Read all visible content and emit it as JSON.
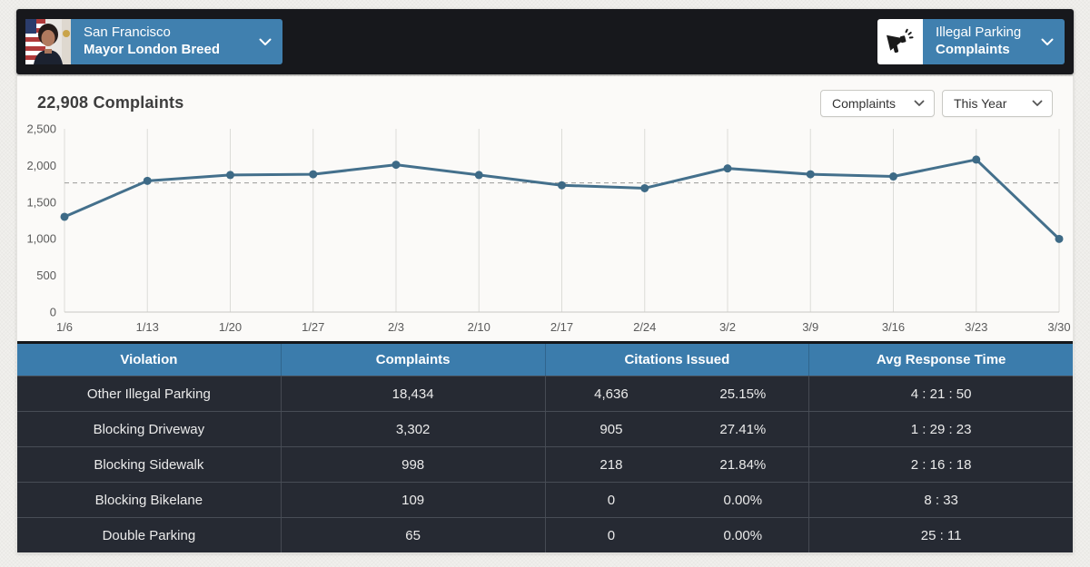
{
  "header": {
    "city_selector": {
      "line1": "San Francisco",
      "line2": "Mayor London Breed"
    },
    "category_selector": {
      "line1": "Illegal Parking",
      "line2": "Complaints"
    }
  },
  "toolbar": {
    "title": "22,908 Complaints",
    "metric_dropdown": "Complaints",
    "period_dropdown": "This Year"
  },
  "chart_data": {
    "type": "line",
    "categories": [
      "1/6",
      "1/13",
      "1/20",
      "1/27",
      "2/3",
      "2/10",
      "2/17",
      "2/24",
      "3/2",
      "3/9",
      "3/16",
      "3/23",
      "3/30"
    ],
    "values": [
      1300,
      1790,
      1870,
      1880,
      2010,
      1870,
      1730,
      1690,
      1960,
      1880,
      1850,
      2080,
      998
    ],
    "average_line": 1762,
    "ylim": [
      0,
      2500
    ],
    "yticks": [
      0,
      500,
      1000,
      1500,
      2000,
      2500
    ],
    "ytick_labels": [
      "0",
      "500",
      "1,000",
      "1,500",
      "2,000",
      "2,500"
    ],
    "grid": "vertical-only",
    "legend": "none",
    "line_color": "#44708c",
    "point_color": "#3d6a86"
  },
  "table": {
    "columns": [
      "Violation",
      "Complaints",
      "Citations Issued",
      "Avg Response Time"
    ],
    "rows": [
      {
        "violation": "Other Illegal Parking",
        "complaints": "18,434",
        "citations": "4,636",
        "citation_rate": "25.15%",
        "avg_response": "4 : 21 : 50"
      },
      {
        "violation": "Blocking Driveway",
        "complaints": "3,302",
        "citations": "905",
        "citation_rate": "27.41%",
        "avg_response": "1 : 29 : 23"
      },
      {
        "violation": "Blocking Sidewalk",
        "complaints": "998",
        "citations": "218",
        "citation_rate": "21.84%",
        "avg_response": "2 : 16 : 18"
      },
      {
        "violation": "Blocking Bikelane",
        "complaints": "109",
        "citations": "0",
        "citation_rate": "0.00%",
        "avg_response": "8 : 33"
      },
      {
        "violation": "Double Parking",
        "complaints": "65",
        "citations": "0",
        "citation_rate": "0.00%",
        "avg_response": "25 : 11"
      }
    ]
  },
  "colors": {
    "topbar": "#17181c",
    "accent_blue": "#4080af",
    "table_header_blue": "#3b7cac",
    "table_row_dark": "#262a33",
    "chart_line": "#44708c"
  }
}
